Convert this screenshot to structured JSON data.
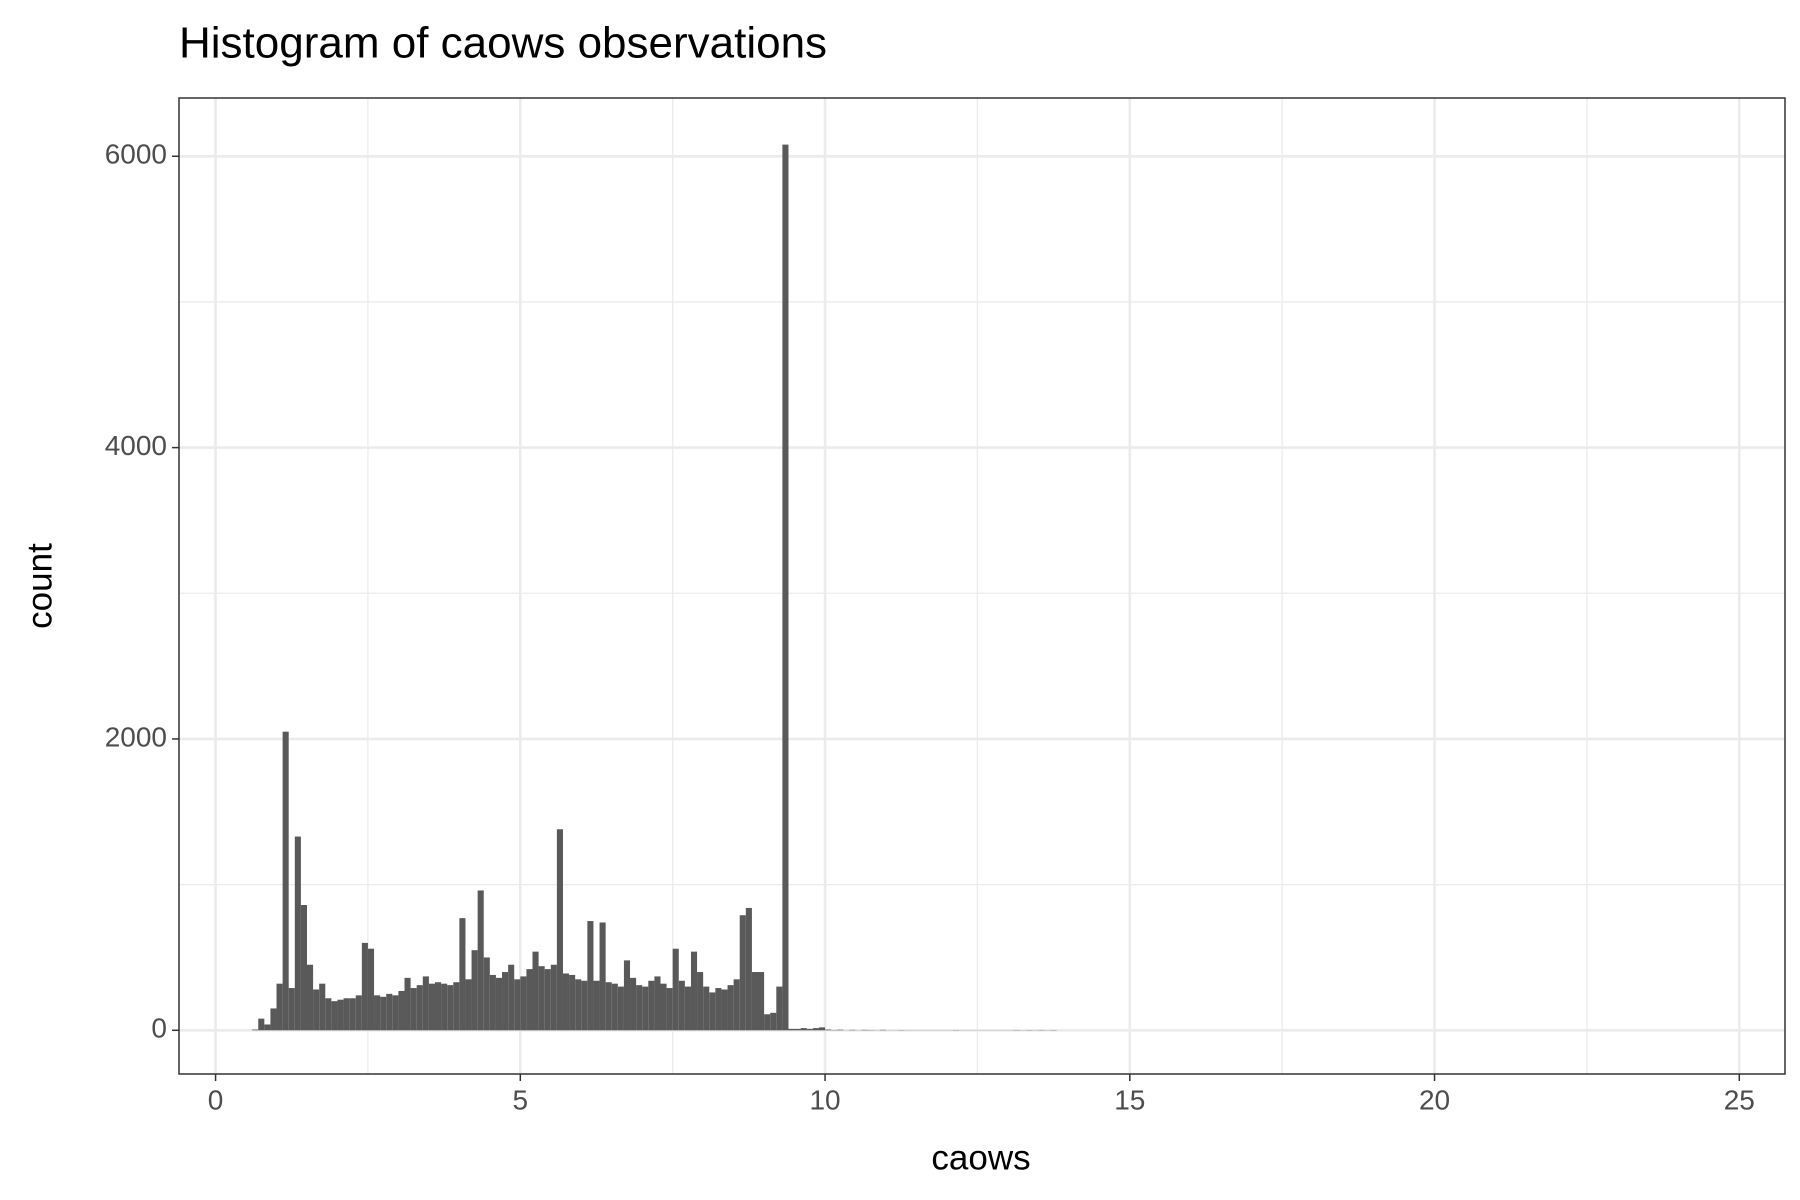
{
  "chart_data": {
    "type": "histogram",
    "title": "Histogram of caows observations",
    "x_label": "caows",
    "y_label": "count",
    "color": "#595959",
    "bins": [
      0.6,
      0.7,
      0.8,
      0.9,
      1.0,
      1.1,
      1.2,
      1.3,
      1.4,
      1.5,
      1.6,
      1.7,
      1.8,
      1.9,
      2.0,
      2.1,
      2.2,
      2.3,
      2.4,
      2.5,
      2.6,
      2.7,
      2.8,
      2.9,
      3.0,
      3.1,
      3.2,
      3.3,
      3.4,
      3.5,
      3.6,
      3.7,
      3.8,
      3.9,
      4.0,
      4.1,
      4.2,
      4.3,
      4.4,
      4.5,
      4.6,
      4.7,
      4.8,
      4.9,
      5.0,
      5.1,
      5.2,
      5.3,
      5.4,
      5.5,
      5.6,
      5.7,
      5.8,
      5.9,
      6.0,
      6.1,
      6.2,
      6.3,
      6.4,
      6.5,
      6.6,
      6.7,
      6.8,
      6.9,
      7.0,
      7.1,
      7.2,
      7.3,
      7.4,
      7.5,
      7.6,
      7.7,
      7.8,
      7.9,
      8.0,
      8.1,
      8.2,
      8.3,
      8.4,
      8.5,
      8.6,
      8.7,
      8.8,
      8.9,
      9.0,
      9.1,
      9.2,
      9.3,
      9.4,
      9.5,
      9.6,
      9.7,
      9.8,
      9.9,
      10.0,
      10.1,
      10.2,
      10.3,
      10.4,
      10.5,
      10.6,
      10.7,
      10.8,
      10.9,
      11.0,
      11.1,
      11.2,
      11.3,
      11.4,
      11.5,
      11.6,
      11.7,
      11.8,
      11.9,
      12.0,
      12.1,
      12.2,
      12.3,
      12.4,
      12.5,
      12.6,
      12.7,
      12.8,
      12.9,
      13.0,
      13.1,
      13.2,
      13.3,
      13.4,
      13.5,
      13.6,
      13.7,
      13.8
    ],
    "counts": [
      5,
      80,
      40,
      150,
      320,
      2050,
      290,
      1330,
      860,
      450,
      280,
      320,
      220,
      200,
      210,
      220,
      220,
      240,
      600,
      560,
      240,
      230,
      250,
      240,
      270,
      360,
      290,
      310,
      370,
      320,
      330,
      320,
      310,
      330,
      770,
      350,
      550,
      960,
      500,
      380,
      360,
      400,
      450,
      350,
      370,
      420,
      540,
      440,
      420,
      450,
      1380,
      390,
      380,
      350,
      340,
      750,
      340,
      740,
      330,
      320,
      300,
      480,
      360,
      310,
      300,
      340,
      370,
      320,
      290,
      560,
      340,
      300,
      540,
      400,
      300,
      260,
      290,
      280,
      310,
      350,
      790,
      840,
      400,
      400,
      110,
      120,
      300,
      6080,
      10,
      10,
      15,
      10,
      15,
      20,
      5,
      2,
      4,
      1,
      3,
      1,
      3,
      2,
      1,
      3,
      1,
      1,
      2,
      1,
      1,
      1,
      1,
      1,
      1,
      1,
      1,
      2,
      1,
      1,
      1,
      1,
      1,
      1,
      1,
      1,
      1,
      2,
      1,
      2,
      1,
      2,
      1,
      2
    ],
    "xlim": [
      -0.6,
      25.75
    ],
    "ylim": [
      -300,
      6400
    ],
    "xticks": [
      0,
      5,
      10,
      15,
      20,
      25
    ],
    "yticks": [
      0,
      2000,
      4000,
      6000
    ],
    "xminor": [
      2.5,
      7.5,
      12.5,
      17.5,
      22.5
    ],
    "yminor": [
      1000,
      3000,
      5000
    ],
    "grid": true
  }
}
